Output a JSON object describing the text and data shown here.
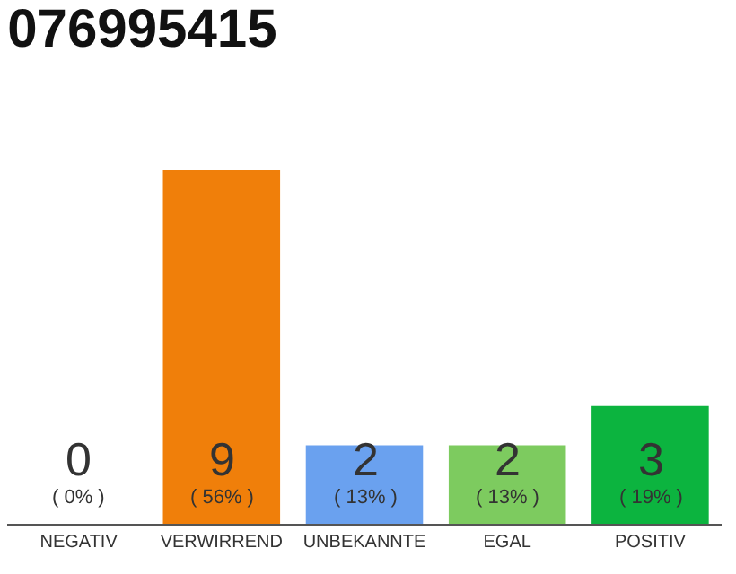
{
  "chart_data": {
    "type": "bar",
    "title": "076995415",
    "categories": [
      "NEGATIV",
      "VERWIRREND",
      "UNBEKANNTE",
      "EGAL",
      "POSITIV"
    ],
    "values": [
      0,
      9,
      2,
      2,
      3
    ],
    "colors": [
      "#aaaaaa",
      "#f07f0a",
      "#6aa1ef",
      "#7dcb5f",
      "#0cb43f"
    ],
    "value_labels": [
      "0\n( 0% )",
      "9\n( 56% )",
      "2\n( 13% )",
      "2\n( 13% )",
      "3\n( 19% )"
    ],
    "ylim": [
      0,
      9
    ],
    "tick_labels": "x",
    "legend": false
  }
}
